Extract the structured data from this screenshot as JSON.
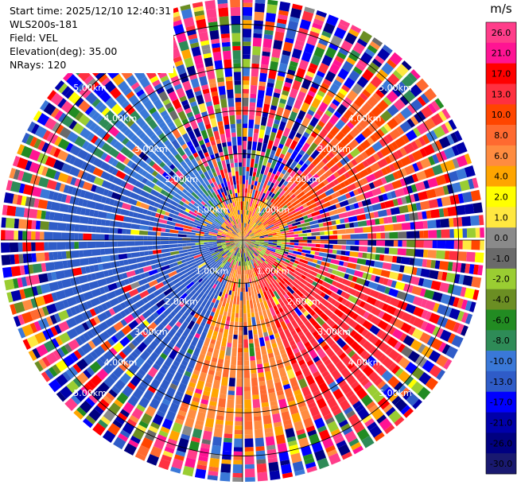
{
  "info": {
    "start_time": "Start time: 2025/12/10 12:40:31",
    "instrument": "WLS200s-181",
    "field": "Field: VEL",
    "elevation": "Elevation(deg): 35.00",
    "nrays": "NRays: 120"
  },
  "chart_data": {
    "type": "heatmap",
    "subtype": "polar-ppi",
    "n_rays": 120,
    "range_rings_km": [
      1.0,
      2.0,
      3.0,
      4.0,
      5.0
    ],
    "ring_labels": [
      "1.00km",
      "2.00km",
      "3.00km",
      "4.00km",
      "5.00km"
    ],
    "max_range_km": 5.6,
    "colorbar": {
      "unit": "m/s",
      "ticks": [
        "26.0",
        "21.0",
        "17.0",
        "13.0",
        "10.0",
        "8.0",
        "6.0",
        "4.0",
        "2.0",
        "1.0",
        "0.0",
        "-1.0",
        "-2.0",
        "-4.0",
        "-6.0",
        "-8.0",
        "-10.0",
        "-13.0",
        "-17.0",
        "-21.0",
        "-26.0",
        "-30.0"
      ],
      "colors": [
        "#ff3d8a",
        "#ff1493",
        "#ff0000",
        "#ff3040",
        "#ff4500",
        "#ff6a30",
        "#ff8c40",
        "#ffa500",
        "#ffff00",
        "#ffe840",
        "#8a8a8a",
        "#6a6a6a",
        "#9acd32",
        "#6b8e23",
        "#228b22",
        "#2e8b57",
        "#3a78d8",
        "#2f5cc8",
        "#0000ff",
        "#0000aa",
        "#000080",
        "#191970"
      ]
    },
    "sectors": [
      {
        "from_deg": 200,
        "to_deg": 300,
        "value": -15.0
      },
      {
        "from_deg": 300,
        "to_deg": 330,
        "value": -11.0
      },
      {
        "from_deg": 160,
        "to_deg": 200,
        "value": 5.0
      },
      {
        "from_deg": 110,
        "to_deg": 160,
        "value": 12.0
      },
      {
        "from_deg": 40,
        "to_deg": 70,
        "value": 9.0
      }
    ]
  }
}
